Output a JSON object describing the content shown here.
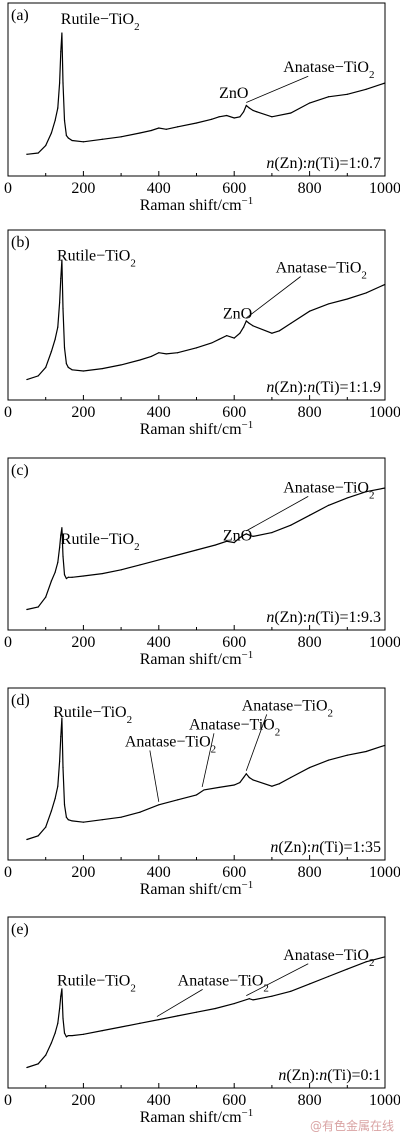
{
  "watermark": "@有色金属在线",
  "chart_data": [
    {
      "type": "line",
      "panel": "(a)",
      "ratio_text": "n(Zn):n(Ti)=1:0.7",
      "xlabel": "Raman shift/cm",
      "xlabel_sup": "−1",
      "xlim": [
        50,
        1000
      ],
      "ticks": [
        0,
        200,
        400,
        600,
        800,
        1000
      ],
      "x": [
        50,
        80,
        100,
        115,
        125,
        132,
        137,
        140,
        143,
        146,
        150,
        155,
        160,
        170,
        200,
        250,
        300,
        350,
        380,
        400,
        420,
        450,
        500,
        540,
        560,
        580,
        600,
        615,
        625,
        632,
        640,
        650,
        660,
        700,
        750,
        800,
        850,
        900,
        950,
        1000
      ],
      "y": [
        3,
        4,
        10,
        20,
        30,
        40,
        60,
        85,
        100,
        60,
        30,
        18,
        16,
        14,
        13,
        15,
        17,
        20,
        22,
        24,
        23,
        25,
        28,
        31,
        33,
        34,
        32,
        33,
        37,
        42,
        40,
        38,
        37,
        33,
        36,
        44,
        49,
        51,
        55,
        60
      ],
      "annotations": [
        {
          "name": "rutile",
          "text": "Rutile−TiO",
          "sub": "2",
          "x": 140
        },
        {
          "name": "zno",
          "text": "ZnO",
          "x": 570
        },
        {
          "name": "anatase-1",
          "text": "Anatase−TiO",
          "sub": "2",
          "x": 632
        }
      ]
    },
    {
      "type": "line",
      "panel": "(b)",
      "ratio_text": "n(Zn):n(Ti)=1:1.9",
      "xlabel": "Raman shift/cm",
      "xlabel_sup": "−1",
      "xlim": [
        50,
        1000
      ],
      "ticks": [
        0,
        200,
        400,
        600,
        800,
        1000
      ],
      "x": [
        50,
        80,
        100,
        115,
        125,
        132,
        137,
        140,
        143,
        146,
        150,
        155,
        160,
        170,
        200,
        250,
        300,
        350,
        380,
        400,
        420,
        450,
        500,
        540,
        560,
        580,
        600,
        615,
        625,
        632,
        640,
        650,
        700,
        720,
        750,
        800,
        850,
        900,
        950,
        1000
      ],
      "y": [
        2,
        5,
        12,
        25,
        35,
        45,
        65,
        85,
        100,
        60,
        28,
        15,
        12,
        10,
        9,
        11,
        14,
        18,
        21,
        24,
        23,
        24,
        28,
        32,
        35,
        38,
        36,
        40,
        45,
        50,
        48,
        46,
        40,
        42,
        48,
        58,
        64,
        68,
        73,
        80
      ],
      "annotations": [
        {
          "name": "rutile",
          "text": "Rutile−TiO",
          "sub": "2",
          "x": 140
        },
        {
          "name": "zno",
          "text": "ZnO",
          "x": 590
        },
        {
          "name": "anatase-1",
          "text": "Anatase−TiO",
          "sub": "2",
          "x": 632
        }
      ]
    },
    {
      "type": "line",
      "panel": "(c)",
      "ratio_text": "n(Zn):n(Ti)=1:9.3",
      "xlabel": "Raman shift/cm",
      "xlabel_sup": "−1",
      "xlim": [
        50,
        1000
      ],
      "ticks": [
        0,
        200,
        400,
        600,
        800,
        1000
      ],
      "x": [
        50,
        80,
        100,
        115,
        125,
        132,
        137,
        140,
        143,
        146,
        150,
        155,
        160,
        170,
        200,
        250,
        300,
        350,
        400,
        450,
        500,
        550,
        580,
        600,
        615,
        625,
        632,
        640,
        650,
        700,
        750,
        800,
        850,
        900,
        950,
        1000
      ],
      "y": [
        2,
        4,
        12,
        25,
        32,
        40,
        52,
        62,
        68,
        45,
        30,
        27,
        28,
        28,
        29,
        31,
        34,
        38,
        42,
        46,
        50,
        54,
        57,
        56,
        60,
        62,
        63,
        62,
        61,
        64,
        70,
        78,
        86,
        92,
        97,
        100
      ],
      "annotations": [
        {
          "name": "rutile",
          "text": "Rutile−TiO",
          "sub": "2",
          "x": 140
        },
        {
          "name": "zno",
          "text": "ZnO",
          "x": 590
        },
        {
          "name": "anatase-1",
          "text": "Anatase−TiO",
          "sub": "2",
          "x": 632
        }
      ]
    },
    {
      "type": "line",
      "panel": "(d)",
      "ratio_text": "n(Zn):n(Ti)=1:35",
      "xlabel": "Raman shift/cm",
      "xlabel_sup": "−1",
      "xlim": [
        50,
        1000
      ],
      "ticks": [
        0,
        200,
        400,
        600,
        800,
        1000
      ],
      "x": [
        50,
        80,
        100,
        115,
        125,
        132,
        137,
        140,
        143,
        146,
        150,
        155,
        160,
        170,
        200,
        250,
        300,
        350,
        400,
        450,
        500,
        520,
        560,
        600,
        615,
        625,
        632,
        640,
        650,
        700,
        720,
        750,
        800,
        850,
        900,
        950,
        1000
      ],
      "y": [
        2,
        5,
        12,
        25,
        35,
        45,
        65,
        85,
        100,
        60,
        30,
        20,
        18,
        17,
        16,
        18,
        20,
        24,
        30,
        34,
        38,
        42,
        44,
        46,
        48,
        52,
        55,
        52,
        50,
        45,
        47,
        52,
        60,
        66,
        70,
        73,
        78
      ],
      "annotations": [
        {
          "name": "rutile",
          "text": "Rutile−TiO",
          "sub": "2",
          "x": 140
        },
        {
          "name": "anatase-400",
          "text": "Anatase−TiO",
          "sub": "2",
          "x": 400
        },
        {
          "name": "anatase-515",
          "text": "Anatase−TiO",
          "sub": "2",
          "x": 515
        },
        {
          "name": "anatase-1",
          "text": "Anatase−TiO",
          "sub": "2",
          "x": 632
        }
      ]
    },
    {
      "type": "line",
      "panel": "(e)",
      "ratio_text": "n(Zn):n(Ti)=0:1",
      "xlabel": "Raman shift/cm",
      "xlabel_sup": "−1",
      "xlim": [
        50,
        1000
      ],
      "ticks": [
        0,
        200,
        400,
        600,
        800,
        1000
      ],
      "x": [
        50,
        80,
        100,
        115,
        125,
        132,
        137,
        140,
        143,
        146,
        150,
        155,
        160,
        170,
        200,
        250,
        300,
        350,
        400,
        450,
        500,
        550,
        600,
        640,
        650,
        700,
        750,
        800,
        850,
        900,
        950,
        1000
      ],
      "y": [
        2,
        5,
        12,
        22,
        30,
        38,
        50,
        60,
        66,
        42,
        30,
        27,
        28,
        28,
        29,
        32,
        35,
        38,
        41,
        44,
        47,
        50,
        54,
        58,
        57,
        60,
        64,
        70,
        76,
        82,
        88,
        92
      ],
      "annotations": [
        {
          "name": "rutile",
          "text": "Rutile−TiO",
          "sub": "2",
          "x": 140
        },
        {
          "name": "anatase-400",
          "text": "Anatase−TiO",
          "sub": "2",
          "x": 395
        },
        {
          "name": "anatase-1",
          "text": "Anatase−TiO",
          "sub": "2",
          "x": 632
        }
      ]
    }
  ]
}
